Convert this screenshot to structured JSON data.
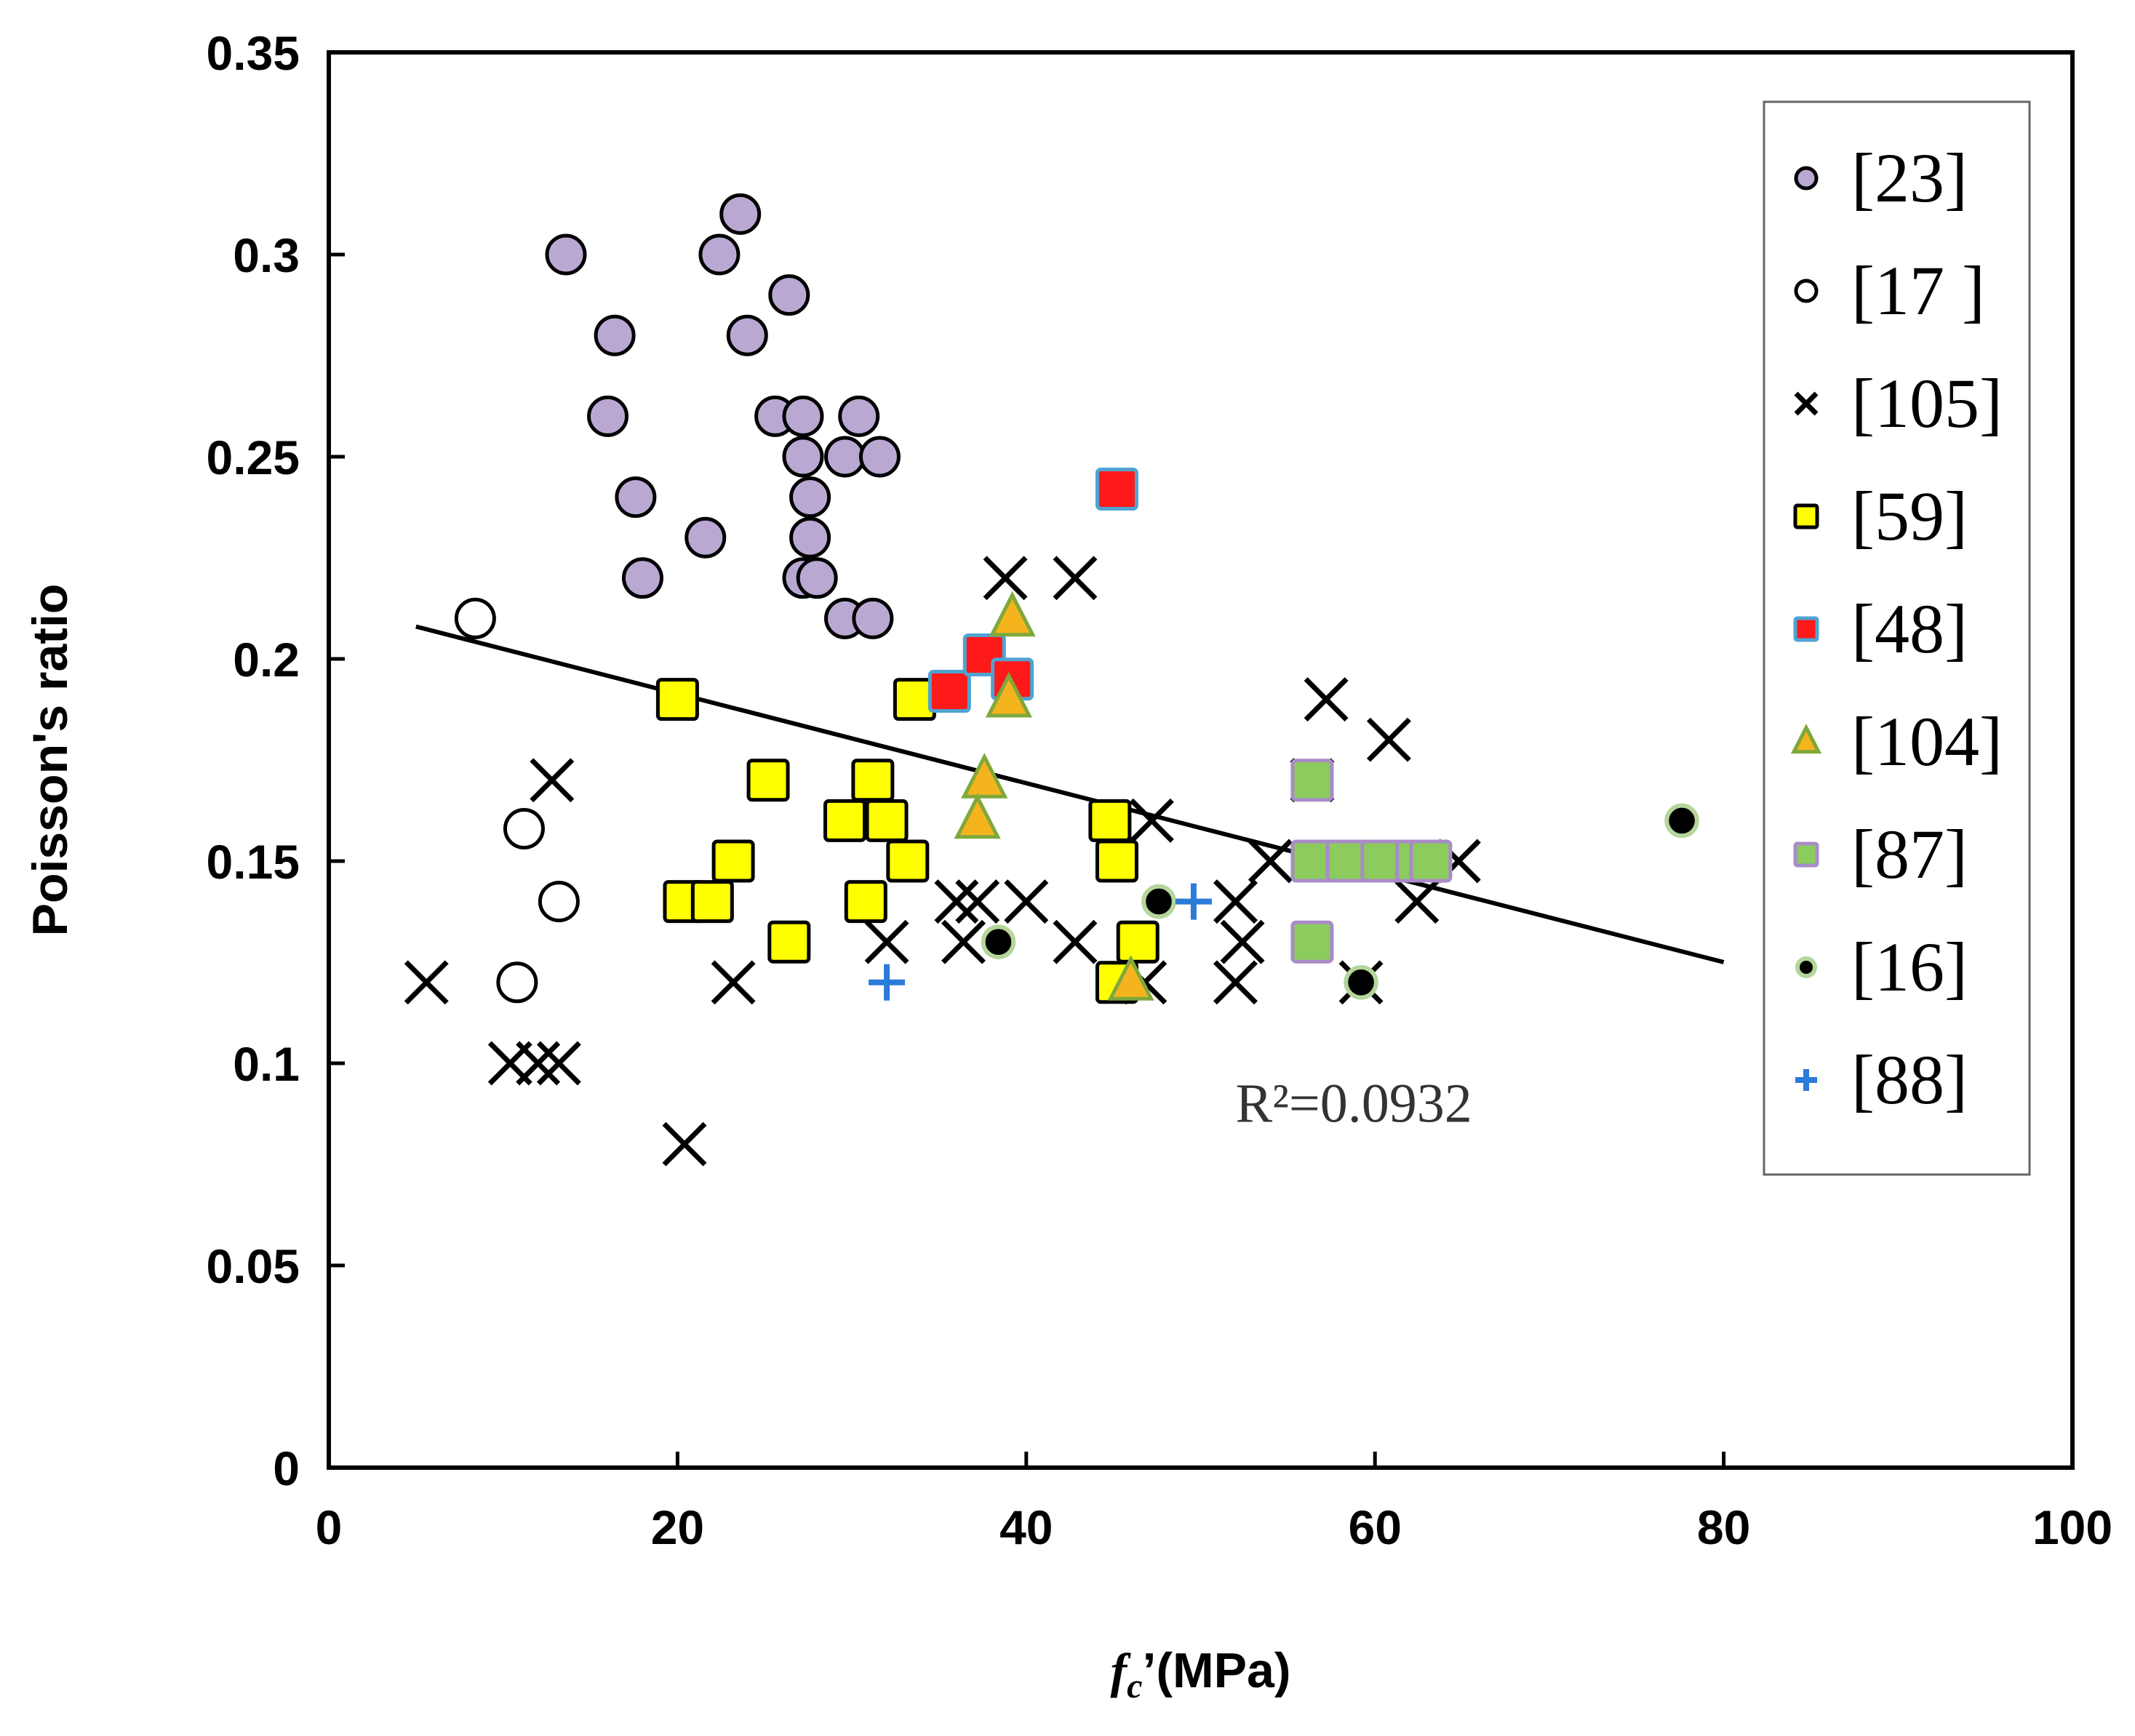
{
  "chart_data": {
    "type": "scatter",
    "xlabel_main": "f",
    "xlabel_sub": "c",
    "xlabel_rest": "’(MPa)",
    "ylabel": "Poisson's ratio",
    "xlim": [
      0,
      100
    ],
    "ylim": [
      0,
      0.35
    ],
    "xticks": [
      "0",
      "20",
      "40",
      "60",
      "80",
      "100"
    ],
    "yticks": [
      "0",
      "0.05",
      "0.1",
      "0.15",
      "0.2",
      "0.25",
      "0.3",
      "0.35"
    ],
    "grid": false,
    "legend_position": "right",
    "annotation_text": "R²=0.0932",
    "trendline": {
      "x": [
        5,
        80
      ],
      "y": [
        0.208,
        0.125
      ]
    },
    "series": [
      {
        "name": "[23]",
        "marker": "circle",
        "fill": "#B9A8D2",
        "stroke": "#000000",
        "points": [
          [
            13.6,
            0.3
          ],
          [
            16.4,
            0.28
          ],
          [
            16.0,
            0.26
          ],
          [
            17.6,
            0.24
          ],
          [
            18.0,
            0.22
          ],
          [
            21.6,
            0.23
          ],
          [
            22.4,
            0.3
          ],
          [
            23.6,
            0.31
          ],
          [
            24.0,
            0.28
          ],
          [
            25.6,
            0.26
          ],
          [
            26.4,
            0.29
          ],
          [
            27.2,
            0.26
          ],
          [
            27.2,
            0.25
          ],
          [
            27.6,
            0.24
          ],
          [
            27.6,
            0.23
          ],
          [
            27.2,
            0.22
          ],
          [
            28.0,
            0.22
          ],
          [
            29.6,
            0.25
          ],
          [
            29.6,
            0.21
          ],
          [
            30.4,
            0.26
          ],
          [
            31.2,
            0.21
          ],
          [
            31.6,
            0.25
          ]
        ]
      },
      {
        "name": "[17 ]",
        "marker": "circle",
        "fill": "#ffffff",
        "stroke": "#000000",
        "points": [
          [
            8.4,
            0.21
          ],
          [
            11.2,
            0.158
          ],
          [
            13.2,
            0.14
          ],
          [
            10.8,
            0.12
          ]
        ]
      },
      {
        "name": "[105]",
        "marker": "x",
        "fill": "none",
        "stroke": "#000000",
        "points": [
          [
            5.6,
            0.12
          ],
          [
            10.4,
            0.1
          ],
          [
            12.0,
            0.1
          ],
          [
            12.8,
            0.17
          ],
          [
            13.2,
            0.1
          ],
          [
            20.4,
            0.08
          ],
          [
            23.2,
            0.12
          ],
          [
            32.0,
            0.13
          ],
          [
            36.0,
            0.14
          ],
          [
            36.4,
            0.13
          ],
          [
            37.2,
            0.14
          ],
          [
            38.8,
            0.22
          ],
          [
            40.0,
            0.14
          ],
          [
            42.8,
            0.22
          ],
          [
            42.8,
            0.13
          ],
          [
            46.8,
            0.12
          ],
          [
            47.2,
            0.16
          ],
          [
            52.0,
            0.14
          ],
          [
            52.0,
            0.12
          ],
          [
            52.4,
            0.13
          ],
          [
            54.0,
            0.15
          ],
          [
            56.4,
            0.17
          ],
          [
            57.2,
            0.19
          ],
          [
            59.2,
            0.12
          ],
          [
            60.8,
            0.18
          ],
          [
            62.4,
            0.14
          ],
          [
            64.8,
            0.15
          ]
        ]
      },
      {
        "name": "[59]",
        "marker": "square",
        "fill": "#FFFF00",
        "stroke": "#000000",
        "points": [
          [
            20.0,
            0.19
          ],
          [
            20.4,
            0.14
          ],
          [
            22.0,
            0.14
          ],
          [
            23.2,
            0.15
          ],
          [
            25.2,
            0.17
          ],
          [
            26.4,
            0.13
          ],
          [
            29.6,
            0.16
          ],
          [
            30.8,
            0.14
          ],
          [
            31.2,
            0.17
          ],
          [
            32.0,
            0.16
          ],
          [
            33.2,
            0.15
          ],
          [
            33.6,
            0.19
          ],
          [
            44.8,
            0.16
          ],
          [
            45.2,
            0.15
          ],
          [
            45.2,
            0.12
          ],
          [
            46.4,
            0.13
          ]
        ]
      },
      {
        "name": "[48]",
        "marker": "square",
        "fill": "#FF1A1A",
        "stroke": "#4FA3D1",
        "points": [
          [
            35.6,
            0.192
          ],
          [
            37.6,
            0.201
          ],
          [
            39.2,
            0.195
          ],
          [
            45.2,
            0.242
          ]
        ]
      },
      {
        "name": "[104]",
        "marker": "triangle",
        "fill": "#F5B41E",
        "stroke": "#7FA83B",
        "points": [
          [
            39.2,
            0.21
          ],
          [
            39.0,
            0.19
          ],
          [
            37.6,
            0.17
          ],
          [
            37.2,
            0.16
          ],
          [
            46.0,
            0.12
          ]
        ]
      },
      {
        "name": "[87]",
        "marker": "square",
        "fill": "#8CCB5E",
        "stroke": "#A98CC7",
        "points": [
          [
            56.4,
            0.17
          ],
          [
            56.4,
            0.15
          ],
          [
            56.4,
            0.13
          ],
          [
            58.4,
            0.15
          ],
          [
            60.4,
            0.15
          ],
          [
            62.4,
            0.15
          ],
          [
            63.2,
            0.15
          ]
        ]
      },
      {
        "name": "[16]",
        "marker": "dot",
        "fill": "#000000",
        "stroke": "#B5D69B",
        "points": [
          [
            38.4,
            0.13
          ],
          [
            47.6,
            0.14
          ],
          [
            59.2,
            0.12
          ],
          [
            77.6,
            0.16
          ]
        ]
      },
      {
        "name": "[88]",
        "marker": "plus",
        "fill": "none",
        "stroke": "#2B7BD8",
        "points": [
          [
            32.0,
            0.12
          ],
          [
            49.6,
            0.14
          ]
        ]
      }
    ]
  }
}
